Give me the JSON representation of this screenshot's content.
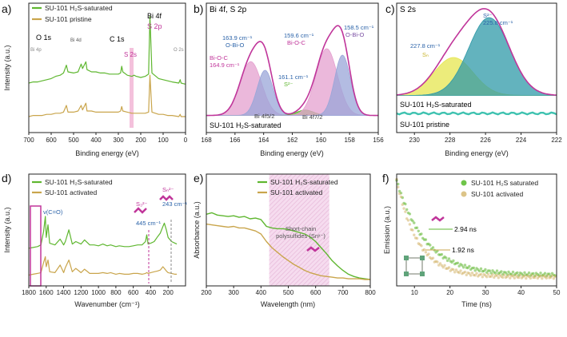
{
  "colors": {
    "green": "#5fb730",
    "gold": "#c9a54c",
    "magenta": "#c0359a",
    "pink_fill": "#e4a0cf",
    "blue_fill": "#9aa6d8",
    "teal_fill": "#2f9aa8",
    "yellow_fill": "#e6e64f",
    "blue_text": "#2a62a8",
    "purple_text": "#7a4fa3",
    "pristine": "#3ec2b0"
  },
  "chart_data": [
    {
      "panel": "a)",
      "type": "line",
      "xlabel": "Binding energy (eV)",
      "ylabel": "Intensity (a.u.)",
      "xlim": [
        700,
        0
      ],
      "x_ticks": [
        "700",
        "600",
        "500",
        "400",
        "300",
        "200",
        "100",
        "0"
      ],
      "legend": [
        "SU-101 H₂S-saturated",
        "SU-101 pristine"
      ],
      "annotations": [
        "O 1s",
        "Bi 4d",
        "C 1s",
        "Bi 4p",
        "S 2s",
        "Bi 4f",
        "S 2p",
        "O 2s"
      ],
      "series": [
        {
          "name": "SU-101 H₂S-saturated",
          "color_key": "green",
          "x": [
            700,
            680,
            660,
            640,
            620,
            600,
            580,
            560,
            545,
            532,
            525,
            500,
            480,
            466,
            460,
            445,
            440,
            420,
            400,
            380,
            360,
            340,
            320,
            300,
            290,
            285,
            280,
            260,
            240,
            230,
            220,
            200,
            180,
            165,
            159,
            150,
            120,
            100,
            80,
            60,
            30,
            24,
            20,
            0
          ],
          "y": [
            0.4,
            0.41,
            0.41,
            0.42,
            0.43,
            0.44,
            0.46,
            0.47,
            0.49,
            0.56,
            0.5,
            0.49,
            0.5,
            0.57,
            0.53,
            0.59,
            0.52,
            0.5,
            0.5,
            0.49,
            0.49,
            0.48,
            0.48,
            0.48,
            0.49,
            0.55,
            0.5,
            0.47,
            0.46,
            0.47,
            0.46,
            0.45,
            0.46,
            0.48,
            1.0,
            0.49,
            0.44,
            0.43,
            0.42,
            0.41,
            0.4,
            0.43,
            0.4,
            0.39
          ]
        },
        {
          "name": "SU-101 pristine",
          "color_key": "gold",
          "x": [
            700,
            680,
            660,
            640,
            620,
            600,
            580,
            560,
            545,
            532,
            525,
            500,
            480,
            466,
            460,
            445,
            440,
            420,
            400,
            380,
            360,
            340,
            320,
            300,
            290,
            285,
            280,
            260,
            240,
            220,
            200,
            180,
            165,
            159,
            150,
            120,
            100,
            80,
            60,
            30,
            24,
            20,
            0
          ],
          "y": [
            0.1,
            0.11,
            0.11,
            0.11,
            0.12,
            0.12,
            0.13,
            0.13,
            0.14,
            0.2,
            0.14,
            0.14,
            0.15,
            0.2,
            0.16,
            0.22,
            0.15,
            0.15,
            0.14,
            0.14,
            0.14,
            0.14,
            0.14,
            0.14,
            0.15,
            0.19,
            0.15,
            0.14,
            0.13,
            0.13,
            0.13,
            0.13,
            0.14,
            0.47,
            0.14,
            0.12,
            0.12,
            0.11,
            0.11,
            0.1,
            0.12,
            0.1,
            0.1
          ]
        }
      ]
    },
    {
      "panel": "b)",
      "type": "line",
      "title": "Bi 4f, S 2p",
      "xlabel": "Binding energy (eV)",
      "xlim": [
        168,
        156
      ],
      "x_ticks": [
        "168",
        "166",
        "164",
        "162",
        "160",
        "158",
        "156"
      ],
      "sample_label": "SU-101 H₂S-saturated",
      "peaks": [
        {
          "label": "164.9 cm⁻¹",
          "sublabel": "Bi-O-C",
          "center": 164.9,
          "height": 0.5,
          "width": 0.75,
          "fill_key": "pink_fill"
        },
        {
          "label": "163.9 cm⁻¹",
          "sublabel": "O-Bi-O",
          "center": 163.9,
          "height": 0.42,
          "width": 0.55,
          "fill_key": "blue_fill"
        },
        {
          "label": "161.1 cm⁻¹",
          "sublabel": "S²⁻",
          "center": 161.1,
          "height": 0.05,
          "width": 0.6,
          "fill_key": "green"
        },
        {
          "label": "159.6 cm⁻¹",
          "sublabel": "Bi-O-C",
          "center": 159.6,
          "height": 0.62,
          "width": 0.75,
          "fill_key": "pink_fill"
        },
        {
          "label": "158.5 cm⁻¹",
          "sublabel": "O-Bi-O",
          "center": 158.5,
          "height": 0.56,
          "width": 0.55,
          "fill_key": "blue_fill"
        }
      ],
      "annotations": [
        "Bi 4f5/2",
        "Bi 4f7/2"
      ]
    },
    {
      "panel": "c)",
      "type": "line",
      "title": "S 2s",
      "xlabel": "Binding energy (eV)",
      "xlim": [
        231,
        222
      ],
      "x_ticks": [
        "230",
        "228",
        "226",
        "224",
        "222"
      ],
      "peaks": [
        {
          "label": "227.8 cm⁻¹",
          "sublabel": "Sₙ",
          "center": 227.8,
          "height": 0.38,
          "width": 1.1,
          "fill_key": "yellow_fill"
        },
        {
          "label": "225.8 cm⁻¹",
          "sublabel": "S²⁻",
          "center": 225.8,
          "height": 0.78,
          "width": 1.15,
          "fill_key": "teal_fill"
        }
      ],
      "series_labels": [
        "SU-101 H₂S-saturated",
        "SU-101 pristine"
      ]
    },
    {
      "panel": "d)",
      "type": "line",
      "xlabel": "Wavenumber (cm⁻¹)",
      "ylabel": "Intensity (a.u.)",
      "xlim": [
        1800,
        0
      ],
      "x_ticks": [
        "1800",
        "1600",
        "1400",
        "1200",
        "1000",
        "800",
        "600",
        "400",
        "200"
      ],
      "legend": [
        "SU-101 H₂S-saturated",
        "SU-101 activated"
      ],
      "annotations": [
        "ν(C=O)",
        "S₃²⁻",
        "445 cm⁻¹",
        "Sₙ²⁻",
        "243 cm⁻¹"
      ],
      "series": [
        {
          "name": "SU-101 H₂S-saturated",
          "color_key": "green",
          "x": [
            1800,
            1750,
            1700,
            1660,
            1630,
            1610,
            1600,
            1580,
            1560,
            1500,
            1440,
            1400,
            1380,
            1340,
            1300,
            1260,
            1200,
            1160,
            1100,
            1050,
            1000,
            950,
            900,
            860,
            800,
            760,
            700,
            650,
            600,
            550,
            500,
            460,
            445,
            430,
            400,
            360,
            320,
            290,
            260,
            243,
            220,
            200,
            160,
            120,
            100
          ],
          "y": [
            0.42,
            0.43,
            0.44,
            0.46,
            0.62,
            0.8,
            0.55,
            0.7,
            0.48,
            0.46,
            0.53,
            0.46,
            0.5,
            0.64,
            0.47,
            0.5,
            0.47,
            0.52,
            0.46,
            0.46,
            0.45,
            0.47,
            0.45,
            0.46,
            0.44,
            0.45,
            0.44,
            0.44,
            0.45,
            0.46,
            0.46,
            0.5,
            0.58,
            0.47,
            0.48,
            0.5,
            0.56,
            0.6,
            0.68,
            0.72,
            0.64,
            0.55,
            0.5,
            0.48,
            0.47
          ]
        },
        {
          "name": "SU-101 activated",
          "color_key": "gold",
          "x": [
            1800,
            1750,
            1700,
            1660,
            1630,
            1610,
            1600,
            1580,
            1560,
            1500,
            1440,
            1400,
            1380,
            1340,
            1300,
            1260,
            1200,
            1160,
            1100,
            1050,
            1000,
            950,
            900,
            860,
            800,
            760,
            700,
            650,
            600,
            550,
            500,
            460,
            445,
            430,
            400,
            360,
            320,
            290,
            260,
            243,
            220,
            200,
            160,
            120,
            100
          ],
          "y": [
            0.1,
            0.11,
            0.12,
            0.13,
            0.25,
            0.32,
            0.2,
            0.28,
            0.14,
            0.13,
            0.22,
            0.13,
            0.19,
            0.28,
            0.14,
            0.18,
            0.13,
            0.17,
            0.12,
            0.12,
            0.12,
            0.13,
            0.12,
            0.13,
            0.11,
            0.12,
            0.11,
            0.11,
            0.12,
            0.12,
            0.11,
            0.12,
            0.13,
            0.12,
            0.13,
            0.14,
            0.15,
            0.16,
            0.2,
            0.18,
            0.15,
            0.13,
            0.12,
            0.11,
            0.11
          ]
        }
      ]
    },
    {
      "panel": "e)",
      "type": "line",
      "xlabel": "Wavelength (nm)",
      "ylabel": "Absorbance (a.u.)",
      "xlim": [
        200,
        800
      ],
      "x_ticks": [
        "200",
        "300",
        "400",
        "500",
        "600",
        "700",
        "800"
      ],
      "legend": [
        "SU-101 H₂S-saturated",
        "SU-101 activated"
      ],
      "shaded_region": [
        430,
        650
      ],
      "annotation": "Short-chain polysulfides (Snˣ⁻)",
      "series": [
        {
          "name": "SU-101 H₂S-saturated",
          "color_key": "green",
          "x": [
            200,
            220,
            240,
            260,
            280,
            300,
            320,
            340,
            360,
            380,
            400,
            420,
            440,
            460,
            480,
            500,
            520,
            540,
            560,
            580,
            600,
            620,
            640,
            660,
            680,
            700,
            720,
            740,
            760,
            780,
            800
          ],
          "y": [
            0.86,
            0.88,
            0.85,
            0.84,
            0.83,
            0.84,
            0.82,
            0.83,
            0.8,
            0.81,
            0.79,
            0.7,
            0.68,
            0.67,
            0.67,
            0.66,
            0.64,
            0.62,
            0.6,
            0.56,
            0.5,
            0.42,
            0.34,
            0.25,
            0.18,
            0.12,
            0.07,
            0.04,
            0.02,
            0.01,
            0.0
          ]
        },
        {
          "name": "SU-101 activated",
          "color_key": "gold",
          "x": [
            200,
            220,
            240,
            260,
            280,
            300,
            320,
            340,
            360,
            380,
            400,
            420,
            440,
            460,
            480,
            500,
            520,
            540,
            560,
            580,
            600,
            620,
            640,
            660,
            680,
            700,
            720,
            740,
            760,
            780,
            800
          ],
          "y": [
            0.73,
            0.72,
            0.71,
            0.7,
            0.69,
            0.7,
            0.68,
            0.68,
            0.66,
            0.64,
            0.6,
            0.5,
            0.42,
            0.36,
            0.3,
            0.25,
            0.2,
            0.16,
            0.12,
            0.09,
            0.07,
            0.05,
            0.04,
            0.03,
            0.02,
            0.02,
            0.01,
            0.01,
            0.01,
            0.0,
            0.0
          ]
        }
      ]
    },
    {
      "panel": "f)",
      "type": "scatter",
      "xlabel": "Time (ns)",
      "ylabel": "Emission (a.u.)",
      "xlim": [
        5,
        50
      ],
      "x_ticks": [
        "10",
        "20",
        "30",
        "40",
        "50"
      ],
      "legend": [
        "SU-101 H₂S saturated",
        "SU-101 activated"
      ],
      "annotations": [
        "2.94 ns",
        "1.92 ns"
      ],
      "series": [
        {
          "name": "SU-101 H₂S saturated",
          "color_key": "green",
          "tau_ns": 2.94,
          "decay_ns": 8.0,
          "floor": 0.06
        },
        {
          "name": "SU-101 activated",
          "color_key": "gold",
          "tau_ns": 1.92,
          "decay_ns": 6.0,
          "floor": 0.04
        }
      ]
    }
  ]
}
